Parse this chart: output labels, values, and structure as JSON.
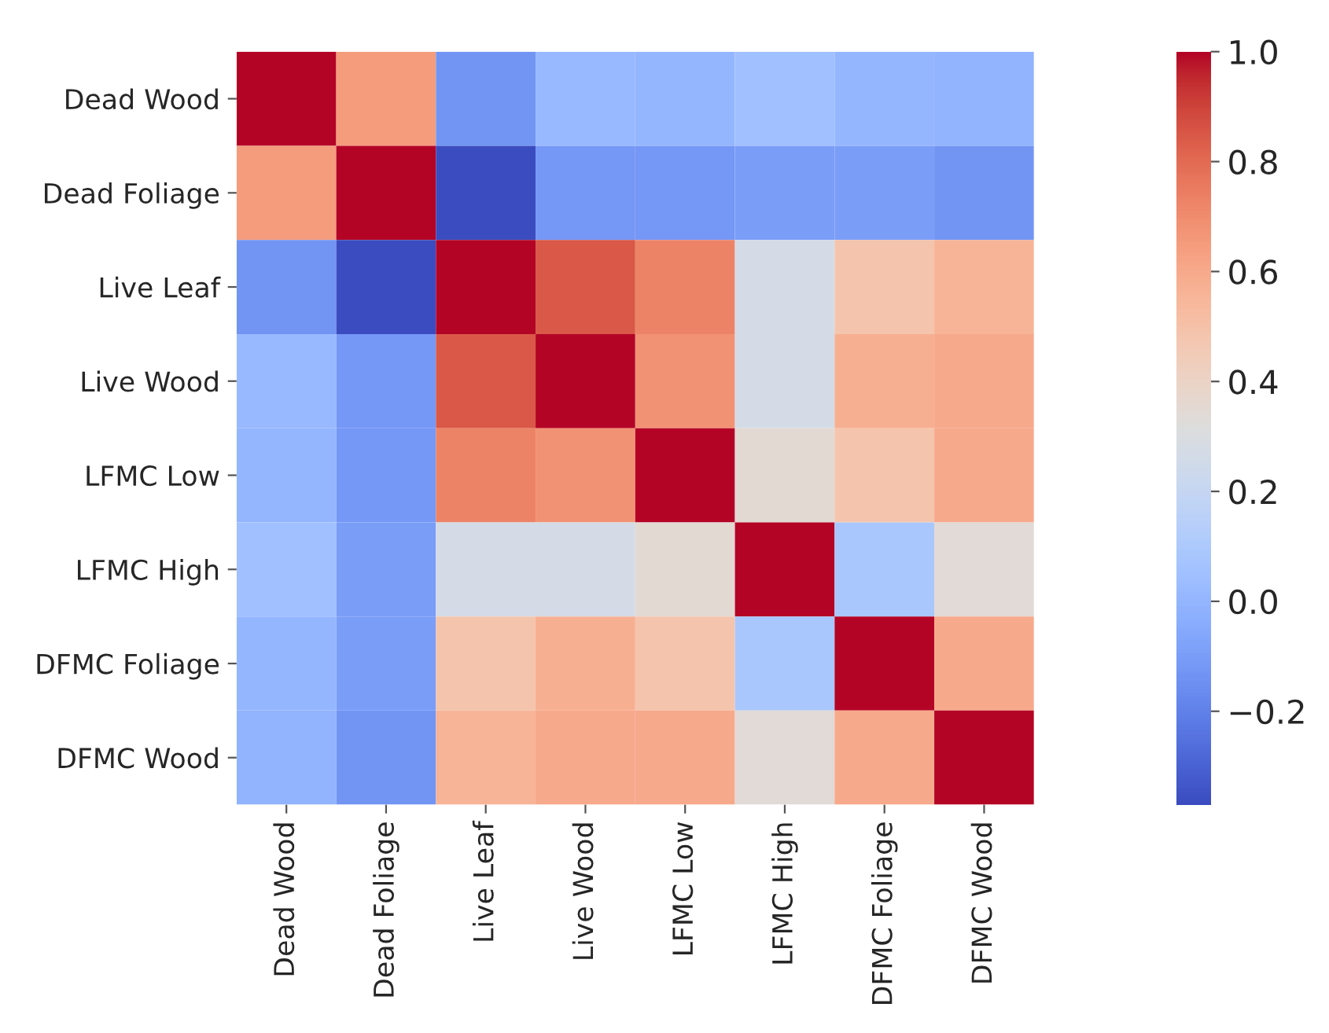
{
  "chart_data": {
    "type": "heatmap",
    "categories": [
      "Dead Wood",
      "Dead Foliage",
      "Live Leaf",
      "Live Wood",
      "LFMC Low",
      "LFMC High",
      "DFMC Foliage",
      "DFMC Wood"
    ],
    "y_categories": [
      "Dead Wood",
      "Dead Foliage",
      "Live Leaf",
      "Live Wood",
      "LFMC Low",
      "LFMC High",
      "DFMC Foliage",
      "DFMC Wood"
    ],
    "cells": [
      [
        1.0,
        0.65,
        -0.13,
        0.02,
        0.0,
        0.05,
        0.0,
        -0.01
      ],
      [
        0.65,
        1.0,
        -0.37,
        -0.12,
        -0.12,
        -0.1,
        -0.1,
        -0.13
      ],
      [
        -0.13,
        -0.37,
        1.0,
        0.85,
        0.73,
        0.27,
        0.49,
        0.56
      ],
      [
        0.02,
        -0.12,
        0.85,
        1.0,
        0.68,
        0.27,
        0.58,
        0.6
      ],
      [
        0.0,
        -0.12,
        0.73,
        0.68,
        1.0,
        0.35,
        0.49,
        0.6
      ],
      [
        0.05,
        -0.1,
        0.27,
        0.27,
        0.35,
        1.0,
        0.09,
        0.34
      ],
      [
        0.0,
        -0.1,
        0.49,
        0.58,
        0.49,
        0.09,
        1.0,
        0.6
      ],
      [
        -0.01,
        -0.13,
        0.56,
        0.6,
        0.6,
        0.34,
        0.6,
        1.0
      ]
    ],
    "clim": [
      -0.37,
      1.0
    ],
    "cticks": [
      {
        "value": -0.2,
        "label": "−0.2"
      },
      {
        "value": 0.0,
        "label": "0.0"
      },
      0.2,
      0.4,
      0.6,
      0.8,
      {
        "value": 1.0,
        "label": "1.0"
      }
    ]
  }
}
